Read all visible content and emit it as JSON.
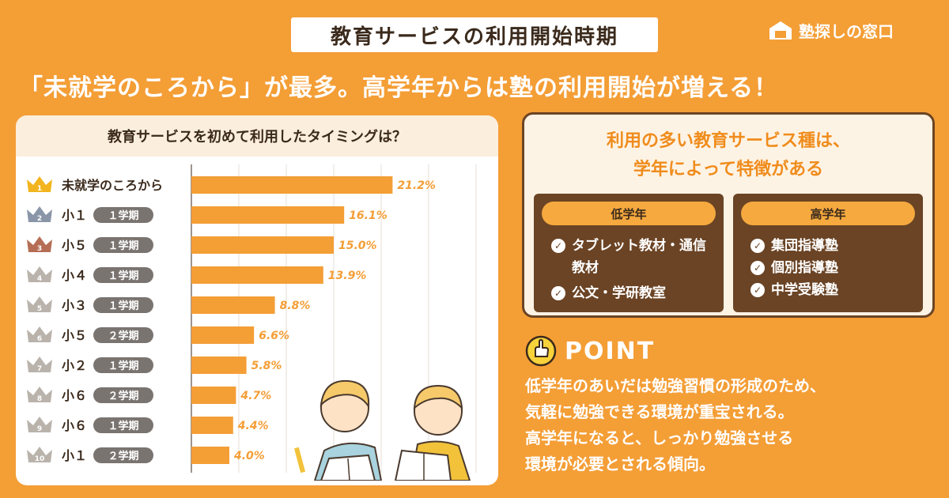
{
  "header": {
    "banner": "教育サービスの利用開始時期",
    "brand": "塾探しの窓口",
    "headline": "「未就学のころから」が最多。高学年からは塾の利用開始が増える！"
  },
  "chart_data": {
    "type": "bar",
    "orientation": "horizontal",
    "title": "教育サービスを初めて利用したタイミングは？",
    "categories": [
      {
        "rank": "1",
        "label": "未就学のころから",
        "term": ""
      },
      {
        "rank": "2",
        "label": "小１",
        "term": "１学期"
      },
      {
        "rank": "3",
        "label": "小５",
        "term": "１学期"
      },
      {
        "rank": "4",
        "label": "小４",
        "term": "１学期"
      },
      {
        "rank": "5",
        "label": "小３",
        "term": "１学期"
      },
      {
        "rank": "6",
        "label": "小５",
        "term": "２学期"
      },
      {
        "rank": "7",
        "label": "小２",
        "term": "１学期"
      },
      {
        "rank": "8",
        "label": "小６",
        "term": "２学期"
      },
      {
        "rank": "9",
        "label": "小６",
        "term": "１学期"
      },
      {
        "rank": "10",
        "label": "小１",
        "term": "２学期"
      }
    ],
    "values": [
      21.2,
      16.1,
      15.0,
      13.9,
      8.8,
      6.6,
      5.8,
      4.7,
      4.4,
      4.0
    ],
    "value_labels": [
      "21.2%",
      "16.1%",
      "15.0%",
      "13.9%",
      "8.8%",
      "6.6%",
      "5.8%",
      "4.7%",
      "4.4%",
      "4.0%"
    ],
    "xlim": [
      0,
      30
    ],
    "grid": true,
    "colors": {
      "bar": "#f49e36",
      "label": "#f49e36",
      "crown_gold": "#f2b51f",
      "crown_silver": "#8a96a8",
      "crown_bronze": "#b56e55",
      "crown_other": "#b9b3ab",
      "term_pill": "#7a7470"
    }
  },
  "info": {
    "heading_line1": "利用の多い教育サービス種は、",
    "heading_line2": "学年によって特徴がある",
    "lower": {
      "title": "低学年",
      "items": [
        "タブレット教材・通信教材",
        "公文・学研教室"
      ]
    },
    "upper": {
      "title": "高学年",
      "items": [
        "集団指導塾",
        "個別指導塾",
        "中学受験塾"
      ]
    }
  },
  "point": {
    "label": "POINT",
    "lines": [
      "低学年のあいだは勉強習慣の形成のため、",
      "気軽に勉強できる環境が重宝される。",
      "高学年になると、しっかり勉強させる",
      "環境が必要とされる傾向。"
    ]
  },
  "colors": {
    "background": "#f49e36",
    "accent": "#f08c1c",
    "dark_brown": "#6b4425"
  }
}
